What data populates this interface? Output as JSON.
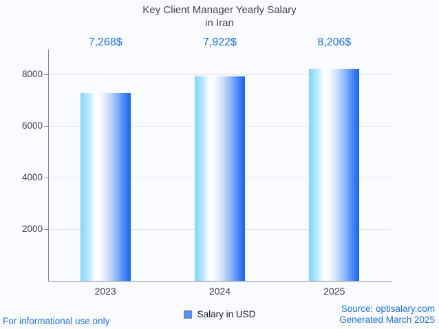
{
  "chart_data": {
    "type": "bar",
    "title": "Key Client Manager Yearly Salary in Iran",
    "title_lines": [
      "Key Client Manager Yearly Salary",
      "in Iran"
    ],
    "categories": [
      "2023",
      "2024",
      "2025"
    ],
    "values": [
      7268,
      7922,
      8206
    ],
    "value_labels": [
      "7,268$",
      "7,922$",
      "8,206$"
    ],
    "series": [
      {
        "name": "Salary in USD",
        "values": [
          7268,
          7922,
          8206
        ]
      }
    ],
    "xlabel": "",
    "ylabel": "",
    "ylim": [
      0,
      8960
    ],
    "yticks": [
      2000,
      4000,
      6000,
      8000
    ],
    "grid": true,
    "legend": {
      "position": "bottom",
      "label": "Salary in USD"
    },
    "colors": {
      "value_label_blue": "#1d6fe8",
      "bar_gradient_left": "#7fd4fb",
      "bar_gradient_mid": "#ffffff",
      "bar_gradient_right": "#1565f3",
      "axis_gray": "#80868b",
      "gridline_gray": "#e3e6ea",
      "tick_text": "#3c4043",
      "title_text": "#404347",
      "background": "#fafbfe",
      "legend_marker_blue": "#4d90fe"
    }
  },
  "footer": {
    "disclaimer": "For informational use only",
    "source_line1": "Source: optisalary.com",
    "source_line2": "Generated March 2025"
  }
}
